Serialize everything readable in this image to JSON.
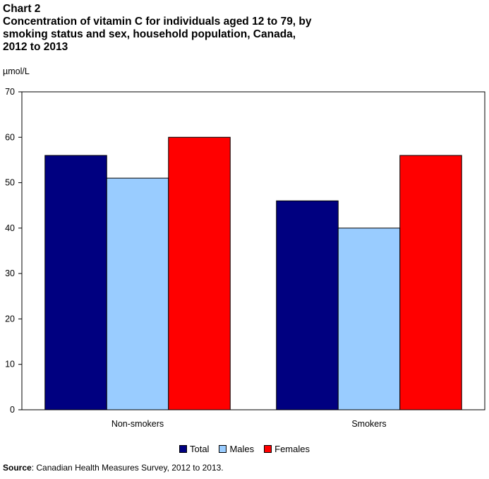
{
  "title": {
    "label": "Chart 2",
    "line1": "Concentration of vitamin C for individuals aged 12 to 79, by",
    "line2": "smoking status and sex, household population, Canada,",
    "line3": "2012 to 2013"
  },
  "source": {
    "label": "Source",
    "text": ": Canadian Health Measures Survey, 2012 to 2013."
  },
  "chart_data": {
    "type": "bar",
    "ylabel": "µmol/L",
    "xlabel": "",
    "ylim": [
      0,
      70
    ],
    "yticks": [
      0,
      10,
      20,
      30,
      40,
      50,
      60,
      70
    ],
    "grid": false,
    "legend_position": "bottom",
    "categories": [
      "Non-smokers",
      "Smokers"
    ],
    "series": [
      {
        "name": "Total",
        "color": "#000080",
        "values": [
          56,
          46
        ]
      },
      {
        "name": "Males",
        "color": "#99ccff",
        "values": [
          51,
          40
        ]
      },
      {
        "name": "Females",
        "color": "#ff0000",
        "values": [
          60,
          56
        ]
      }
    ]
  }
}
